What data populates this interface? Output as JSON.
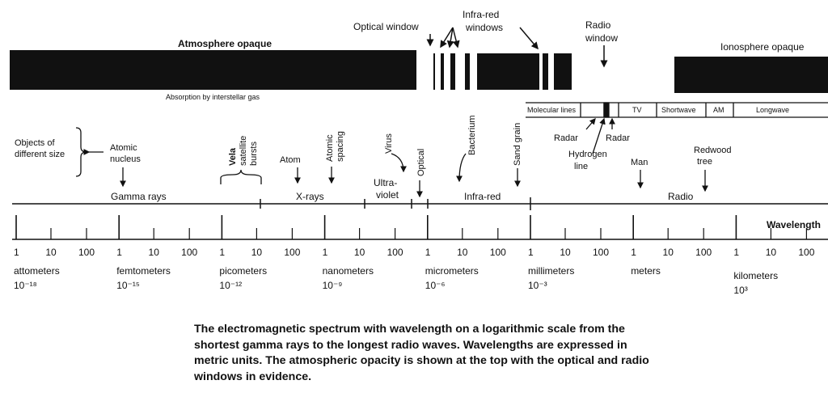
{
  "atmosphere": {
    "opaque_label": "Atmosphere opaque",
    "absorption_label": "Absorption by interstellar gas",
    "optical_window": "Optical window",
    "infrared_windows": [
      "Infra-red",
      "windows"
    ],
    "radio_window": [
      "Radio",
      "window"
    ],
    "ionosphere_label": "Ionosphere opaque"
  },
  "radio_bands": [
    "Molecular lines",
    "TV",
    "Shortwave",
    "AM",
    "Longwave"
  ],
  "radio_markers": {
    "radar1": "Radar",
    "radar2": "Radar",
    "hydrogen": [
      "Hydrogen",
      "line"
    ]
  },
  "objects": {
    "label": [
      "Objects of",
      "different size"
    ],
    "atomic_nucleus": [
      "Atomic",
      "nucleus"
    ],
    "vela": [
      "Vela",
      "satellite",
      "bursts"
    ],
    "atom": "Atom",
    "atomic_spacing": [
      "Atomic",
      "spacing"
    ],
    "virus": "Virus",
    "optical": "Optical",
    "bacterium": "Bacterium",
    "sand_grain": "Sand grain",
    "man": "Man",
    "redwood": [
      "Redwood",
      "tree"
    ]
  },
  "regions": [
    "Gamma rays",
    "X-rays",
    "Ultra-",
    "violet",
    "Infra-red",
    "Radio"
  ],
  "axis": {
    "title": "Wavelength",
    "tick_labels": [
      "1",
      "10",
      "100",
      "1",
      "10",
      "100",
      "1",
      "10",
      "100",
      "1",
      "10",
      "100",
      "1",
      "10",
      "100",
      "1",
      "10",
      "100",
      "1",
      "10",
      "100",
      "1",
      "10",
      "100"
    ],
    "units": [
      {
        "name": "attometers",
        "power": "10⁻¹⁸"
      },
      {
        "name": "femtometers",
        "power": "10⁻¹⁵"
      },
      {
        "name": "picometers",
        "power": "10⁻¹²"
      },
      {
        "name": "nanometers",
        "power": "10⁻⁹"
      },
      {
        "name": "micrometers",
        "power": "10⁻⁶"
      },
      {
        "name": "millimeters",
        "power": "10⁻³"
      },
      {
        "name": "meters",
        "power": ""
      },
      {
        "name": "kilometers",
        "power": "10³"
      }
    ]
  },
  "caption": "The electromagnetic spectrum with wavelength on a logarithmic scale from the shortest gamma rays to the longest radio waves. Wavelengths are expressed in metric units. The atmospheric opacity is shown at the top with the optical and radio windows in evidence."
}
